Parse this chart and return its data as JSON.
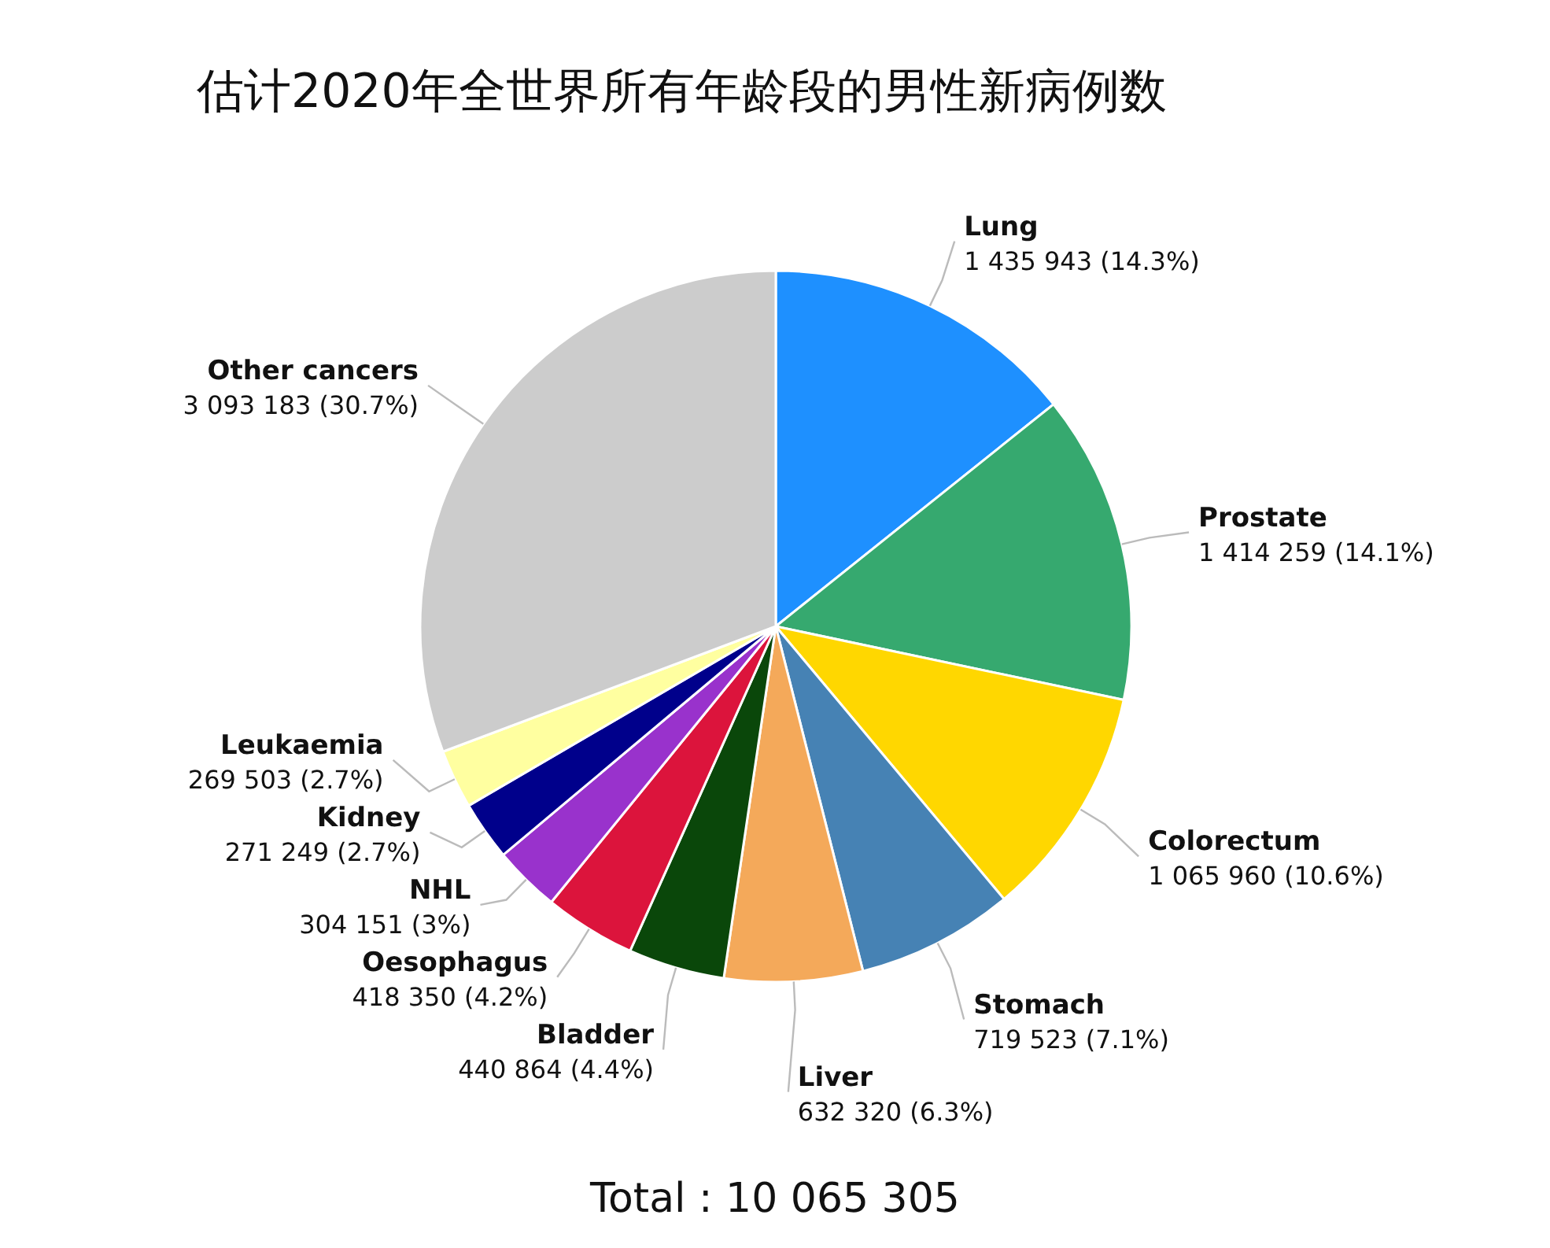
{
  "chart_data": {
    "type": "pie",
    "title": "估计2020年全世界所有年龄段的男性新病例数",
    "categories": [
      "Lung",
      "Prostate",
      "Colorectum",
      "Stomach",
      "Liver",
      "Bladder",
      "Oesophagus",
      "NHL",
      "Kidney",
      "Leukaemia",
      "Other cancers"
    ],
    "values": [
      1435943,
      1414259,
      1065960,
      719523,
      632320,
      440864,
      418350,
      304151,
      271249,
      269503,
      3093183
    ],
    "value_labels": [
      "1 435 943 (14.3%)",
      "1 414 259 (14.1%)",
      "1 065 960 (10.6%)",
      "719 523 (7.1%)",
      "632 320 (6.3%)",
      "440 864 (4.4%)",
      "418 350 (4.2%)",
      "304 151 (3%)",
      "271 249 (2.7%)",
      "269 503 (2.7%)",
      "3 093 183 (30.7%)"
    ],
    "colors": [
      "#1e90ff",
      "#36a96f",
      "#ffd700",
      "#4682b4",
      "#f4a95a",
      "#0a470a",
      "#dc143c",
      "#9932cc",
      "#00008b",
      "#ffffa0",
      "#cccccc"
    ],
    "annotations": [
      "Total : 10 065 305"
    ]
  }
}
